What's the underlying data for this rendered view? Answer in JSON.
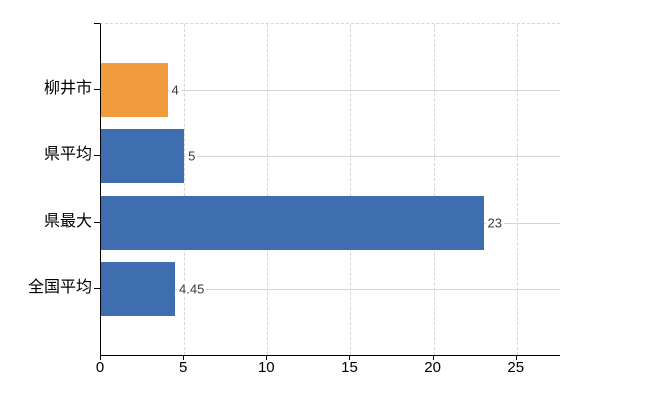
{
  "chart_data": {
    "type": "bar",
    "orientation": "horizontal",
    "title": "",
    "xlabel": "",
    "ylabel": "",
    "categories": [
      "柳井市",
      "県平均",
      "県最大",
      "全国平均"
    ],
    "values": [
      4,
      5,
      23,
      4.45
    ],
    "value_labels": [
      "4",
      "5",
      "23",
      "4.45"
    ],
    "bar_colors": [
      "#f29b3e",
      "#3e6eb0",
      "#3e6eb0",
      "#3e6eb0"
    ],
    "xlim": [
      0,
      27.6
    ],
    "xticks": [
      0,
      5,
      10,
      15,
      20,
      25
    ],
    "xtick_labels": [
      "0",
      "5",
      "10",
      "15",
      "20",
      "25"
    ],
    "grid": true,
    "legend": false,
    "colors": {
      "highlight_bar": "#f29b3e",
      "default_bar": "#3e6eb0",
      "gridline": "#d5d5d5",
      "axis": "#000000",
      "value_label": "#3a3a3a",
      "background": "#ffffff"
    }
  }
}
